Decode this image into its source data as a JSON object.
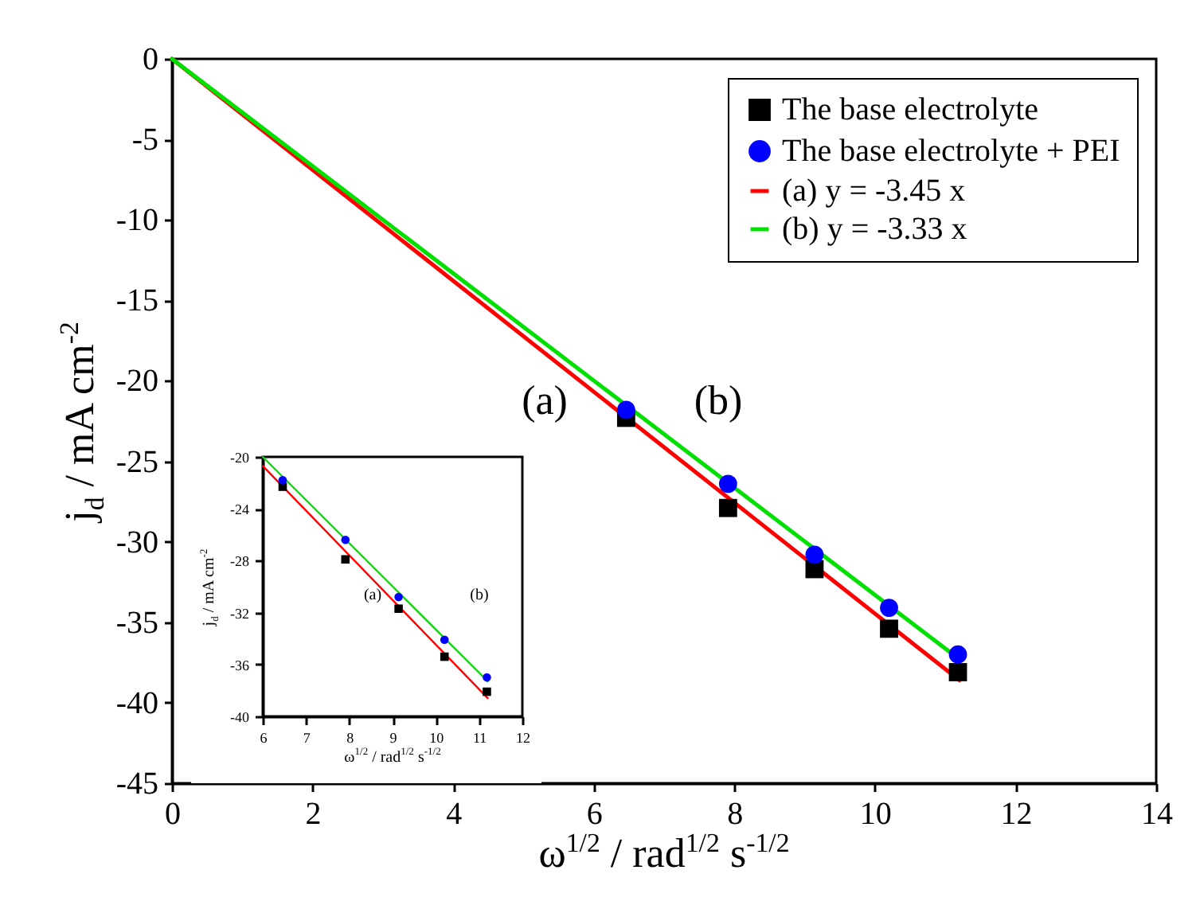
{
  "chart_data": [
    {
      "type": "scatter",
      "xlabel": "ω$^{1/2}$ / rad$^{1/2}$ s$^{-1/2}$",
      "ylabel": "j$_{d}$ / mA cm$^{-2}$",
      "xlim": [
        0,
        14
      ],
      "xticks": [
        0,
        2,
        4,
        6,
        8,
        10,
        12,
        14
      ],
      "ylim": [
        -45,
        0
      ],
      "yticks": [
        -45,
        -40,
        -35,
        -30,
        -25,
        -20,
        -15,
        -10,
        -5,
        0
      ],
      "legend": "top right",
      "grid": false,
      "annotations": [
        "(a)",
        "(b)"
      ],
      "series": [
        {
          "name": "The base electrolyte",
          "marker": "square",
          "color": "#000000",
          "x": [
            6.46,
            7.91,
            9.14,
            10.2,
            11.18
          ],
          "values": [
            -22.3,
            -27.9,
            -31.7,
            -35.4,
            -38.1
          ]
        },
        {
          "name": "The base electrolyte + PEI",
          "marker": "circle",
          "color": "#0000ff",
          "x": [
            6.46,
            7.91,
            9.14,
            10.2,
            11.18
          ],
          "values": [
            -21.8,
            -26.4,
            -30.8,
            -34.1,
            -37.0
          ]
        },
        {
          "name": "(a) y = -3.45 x",
          "type": "line",
          "color": "#ff0000",
          "x": [
            0,
            11.2
          ],
          "values": [
            0,
            -38.6
          ]
        },
        {
          "name": "(b) y = -3.33 x",
          "type": "line",
          "color": "#00e000",
          "x": [
            0,
            11.2
          ],
          "values": [
            0,
            -37.3
          ]
        }
      ]
    },
    {
      "type": "scatter",
      "xlabel": "ω$^{1/2}$ / rad$^{1/2}$ s$^{-1/2}$",
      "ylabel": "j$_{d}$ / mA cm$^{-2}$",
      "xlim": [
        6,
        12
      ],
      "xticks": [
        6,
        7,
        8,
        9,
        10,
        11,
        12
      ],
      "ylim": [
        -40,
        -20
      ],
      "yticks": [
        -40,
        -36,
        -32,
        -28,
        -24,
        -20
      ],
      "grid": false,
      "annotations": [
        "(a)",
        "(b)"
      ],
      "series": [
        {
          "marker": "square",
          "color": "#000000",
          "x": [
            6.46,
            7.91,
            9.14,
            10.2,
            11.18
          ],
          "values": [
            -22.3,
            -27.9,
            -31.7,
            -35.4,
            -38.1
          ]
        },
        {
          "marker": "circle",
          "color": "#0000ff",
          "x": [
            6.46,
            7.91,
            9.14,
            10.2,
            11.18
          ],
          "values": [
            -21.8,
            -26.4,
            -30.8,
            -34.1,
            -37.0
          ]
        },
        {
          "type": "line",
          "color": "#ff0000",
          "x": [
            6,
            11.2
          ],
          "values": [
            -20.7,
            -38.6
          ]
        },
        {
          "type": "line",
          "color": "#00e000",
          "x": [
            6,
            11.2
          ],
          "values": [
            -20.0,
            -37.3
          ]
        }
      ]
    }
  ]
}
